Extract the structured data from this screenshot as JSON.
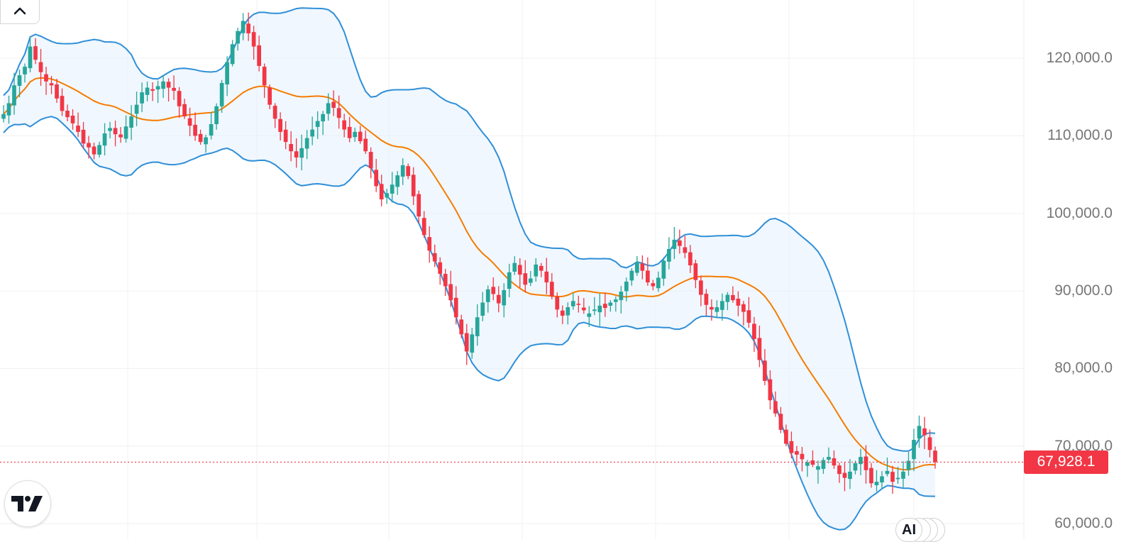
{
  "chart_data": {
    "type": "candlestick",
    "y_ticks": [
      "120,000.0",
      "110,000.0",
      "100,000.0",
      "90,000.0",
      "80,000.0",
      "70,000.0",
      "60,000.0"
    ],
    "y_tick_values": [
      120000,
      110000,
      100000,
      90000,
      80000,
      70000,
      60000
    ],
    "ylim": [
      58000,
      127500
    ],
    "last_price": 67928.1,
    "last_price_label": "67,928.1",
    "grid": true,
    "indicators": [
      "Bollinger Bands (basis, upper, lower)"
    ],
    "closes_approx": [
      112800,
      114200,
      116500,
      117800,
      118900,
      121500,
      119800,
      118200,
      117000,
      116500,
      114800,
      113200,
      112400,
      111600,
      110500,
      109000,
      108500,
      107600,
      108800,
      110300,
      111000,
      110200,
      109800,
      111200,
      112500,
      114000,
      115600,
      116200,
      115800,
      116400,
      117000,
      116200,
      115800,
      113800,
      112500,
      111300,
      110000,
      109200,
      109800,
      111500,
      113800,
      116800,
      119500,
      121800,
      123500,
      124800,
      123200,
      121500,
      119000,
      116500,
      114000,
      112200,
      110500,
      109200,
      108000,
      107200,
      108400,
      109700,
      110800,
      111900,
      112800,
      114200,
      113600,
      112300,
      110800,
      109700,
      110500,
      109300,
      108000,
      105800,
      103500,
      101800,
      102600,
      103700,
      104900,
      106200,
      104800,
      102200,
      99600,
      97200,
      95200,
      93800,
      92200,
      90600,
      88800,
      86600,
      84400,
      82200,
      84400,
      86600,
      88500,
      90200,
      89600,
      88400,
      90100,
      92400,
      93600,
      92100,
      90800,
      91600,
      93400,
      92600,
      91100,
      89300,
      87600,
      86800,
      87900,
      88700,
      88200,
      87500,
      87100,
      87600,
      88100,
      87800,
      88500,
      88900,
      89900,
      91200,
      92600,
      93700,
      92600,
      91100,
      90600,
      91700,
      93900,
      95400,
      96600,
      95800,
      94900,
      93300,
      91400,
      89500,
      88200,
      87600,
      87900,
      88700,
      89500,
      88800,
      88100,
      87300,
      85900,
      83800,
      81100,
      78400,
      75900,
      74200,
      72100,
      70300,
      69100,
      68900,
      68300,
      67900,
      67600,
      67400,
      68200,
      68600,
      67500,
      66400,
      65900,
      66700,
      67800,
      68600,
      66900,
      65200,
      65400,
      66100,
      66800,
      65400,
      65900,
      66700,
      68100,
      70800,
      72600,
      71400,
      69500,
      67928.1
    ]
  },
  "price_axis": {
    "tag_color": "#f23645"
  },
  "colors": {
    "up": "#26a69a",
    "down": "#f23645",
    "basis": "#f57c00",
    "bands": "#2f8fd8",
    "band_fill": "#e3f1fd"
  },
  "controls": {
    "collapse_icon": "chevron-up-icon",
    "logo_icon": "tradingview-logo-icon",
    "ai_badge_label": "AI"
  }
}
